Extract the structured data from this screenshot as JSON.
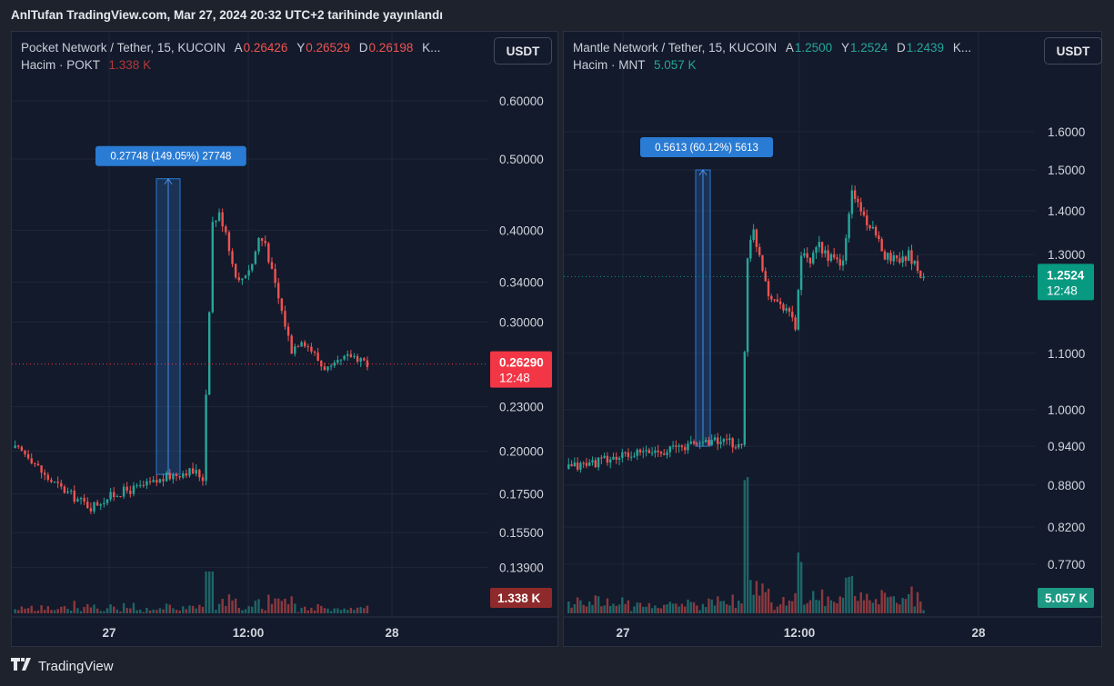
{
  "header": {
    "published": "AnlTufan TradingView.com, Mar 27, 2024 20:32 UTC+2 tarihinde yayınlandı"
  },
  "footer": {
    "brand": "TradingView"
  },
  "colors": {
    "up": "#26a69a",
    "down": "#ef5350",
    "bg": "#131a2b",
    "measure": "#2a7bd3"
  },
  "left": {
    "symbol": "Pocket Network / Tether, 15, KUCOIN",
    "o_label": "A",
    "o_val": "0.26426",
    "h_label": "Y",
    "h_val": "0.26529",
    "l_label": "D",
    "l_val": "0.26198",
    "ellipsis": "K...",
    "vol_label": "Hacim · POKT",
    "vol_val": "1.338 K",
    "unit": "USDT",
    "price_label": "0.26290",
    "countdown": "12:48",
    "vol_badge": "1.338 K",
    "measure_label": "0.27748 (149.05%) 27748",
    "x_labels": [
      "27",
      "12:00",
      "28"
    ]
  },
  "right": {
    "symbol": "Mantle Network / Tether, 15, KUCOIN",
    "o_label": "A",
    "o_val": "1.2500",
    "h_label": "Y",
    "h_val": "1.2524",
    "l_label": "D",
    "l_val": "1.2439",
    "ellipsis": "K...",
    "vol_label": "Hacim · MNT",
    "vol_val": "5.057 K",
    "unit": "USDT",
    "price_label": "1.2524",
    "countdown": "12:48",
    "vol_badge": "5.057 K",
    "measure_label": "0.5613 (60.12%) 5613",
    "x_labels": [
      "27",
      "12:00",
      "28"
    ]
  },
  "chart_data": [
    {
      "type": "candlestick",
      "title": "Pocket Network / Tether, 15, KUCOIN",
      "log_scale": true,
      "y_ticks": [
        "0.60000",
        "0.50000",
        "0.40000",
        "0.34000",
        "0.30000",
        "0.23000",
        "0.20000",
        "0.17500",
        "0.15500",
        "0.13900"
      ],
      "y_tick_values": [
        0.6,
        0.5,
        0.4,
        0.34,
        0.3,
        0.23,
        0.2,
        0.175,
        0.155,
        0.139
      ],
      "x_ticks": [
        "27",
        "12:00",
        "28"
      ],
      "last_price": 0.2629,
      "series_path": [
        [
          0,
          0.202
        ],
        [
          10,
          0.198
        ],
        [
          20,
          0.185
        ],
        [
          30,
          0.178
        ],
        [
          40,
          0.172
        ],
        [
          48,
          0.168
        ],
        [
          56,
          0.172
        ],
        [
          66,
          0.176
        ],
        [
          76,
          0.178
        ],
        [
          86,
          0.181
        ],
        [
          96,
          0.185
        ],
        [
          106,
          0.188
        ],
        [
          112,
          0.187
        ],
        [
          116,
          0.184
        ],
        [
          118,
          0.24
        ],
        [
          122,
          0.41
        ],
        [
          126,
          0.42
        ],
        [
          130,
          0.4
        ],
        [
          134,
          0.36
        ],
        [
          138,
          0.34
        ],
        [
          142,
          0.35
        ],
        [
          146,
          0.36
        ],
        [
          150,
          0.39
        ],
        [
          154,
          0.385
        ],
        [
          158,
          0.35
        ],
        [
          164,
          0.31
        ],
        [
          170,
          0.275
        ],
        [
          176,
          0.285
        ],
        [
          182,
          0.275
        ],
        [
          188,
          0.262
        ],
        [
          194,
          0.258
        ],
        [
          200,
          0.265
        ],
        [
          206,
          0.27
        ],
        [
          212,
          0.268
        ],
        [
          216,
          0.2629
        ]
      ],
      "measure": {
        "from": 0.186,
        "to": 0.47,
        "change": "0.27748 (149.05%) 27748"
      },
      "volume_last": "1.338 K"
    },
    {
      "type": "candlestick",
      "title": "Mantle Network / Tether, 15, KUCOIN",
      "log_scale": true,
      "y_ticks": [
        "1.6000",
        "1.5000",
        "1.4000",
        "1.3000",
        "1.1000",
        "1.0000",
        "0.9400",
        "0.8800",
        "0.8200",
        "0.7700"
      ],
      "y_tick_values": [
        1.6,
        1.5,
        1.4,
        1.3,
        1.1,
        1.0,
        0.94,
        0.88,
        0.82,
        0.77
      ],
      "x_ticks": [
        "27",
        "12:00",
        "28"
      ],
      "last_price": 1.2524,
      "series_path": [
        [
          0,
          0.905
        ],
        [
          20,
          0.915
        ],
        [
          40,
          0.925
        ],
        [
          60,
          0.932
        ],
        [
          80,
          0.94
        ],
        [
          96,
          0.95
        ],
        [
          110,
          0.945
        ],
        [
          118,
          0.94
        ],
        [
          122,
          1.3
        ],
        [
          126,
          1.35
        ],
        [
          130,
          1.3
        ],
        [
          136,
          1.22
        ],
        [
          142,
          1.2
        ],
        [
          148,
          1.19
        ],
        [
          154,
          1.15
        ],
        [
          158,
          1.3
        ],
        [
          164,
          1.28
        ],
        [
          170,
          1.32
        ],
        [
          178,
          1.29
        ],
        [
          186,
          1.28
        ],
        [
          192,
          1.45
        ],
        [
          198,
          1.4
        ],
        [
          206,
          1.35
        ],
        [
          214,
          1.3
        ],
        [
          222,
          1.29
        ],
        [
          230,
          1.3
        ],
        [
          236,
          1.27
        ],
        [
          240,
          1.2524
        ]
      ],
      "measure": {
        "from": 0.94,
        "to": 1.5,
        "change": "0.5613 (60.12%) 5613"
      },
      "volume_last": "5.057 K"
    }
  ]
}
